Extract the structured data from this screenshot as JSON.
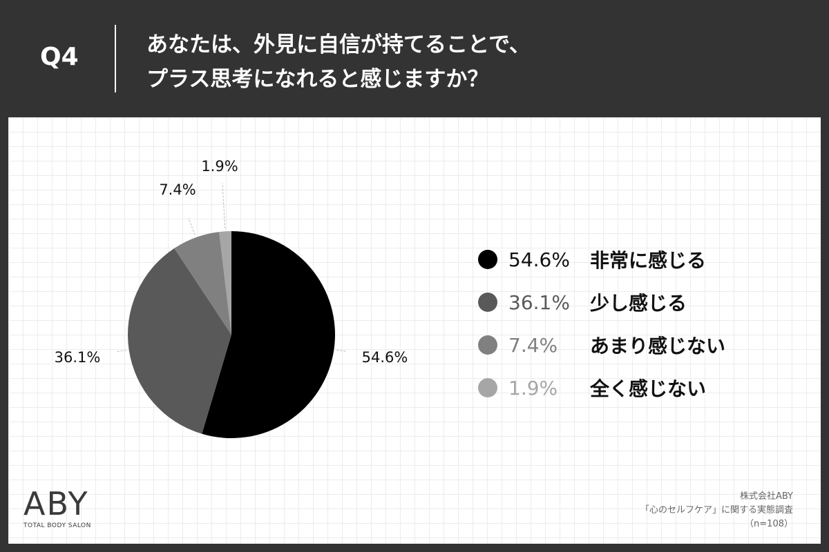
{
  "header": {
    "question_number": "Q4",
    "question_line1": "あなたは、外見に自信が持てることで、",
    "question_line2": "プラス思考になれると感じますか？"
  },
  "chart_data": {
    "type": "pie",
    "slices": [
      {
        "label": "非常に感じる",
        "value": 54.6,
        "display": "54.6%",
        "color": "#000000",
        "legend_text_color": "#111111"
      },
      {
        "label": "少し感じる",
        "value": 36.1,
        "display": "36.1%",
        "color": "#595959",
        "legend_text_color": "#595959"
      },
      {
        "label": "あまり感じない",
        "value": 7.4,
        "display": "7.4%",
        "color": "#808080",
        "legend_text_color": "#808080"
      },
      {
        "label": "全く感じない",
        "value": 1.9,
        "display": "1.9%",
        "color": "#a6a6a6",
        "legend_text_color": "#a6a6a6"
      }
    ],
    "start": "12 o'clock",
    "direction": "clockwise",
    "legend_position": "right"
  },
  "logo": {
    "name": "ABY",
    "tagline": "TOTAL BODY SALON"
  },
  "source": {
    "company": "株式会社ABY",
    "survey": "「心のセルフケア」に関する実態調査",
    "sample": "（n=108）"
  }
}
